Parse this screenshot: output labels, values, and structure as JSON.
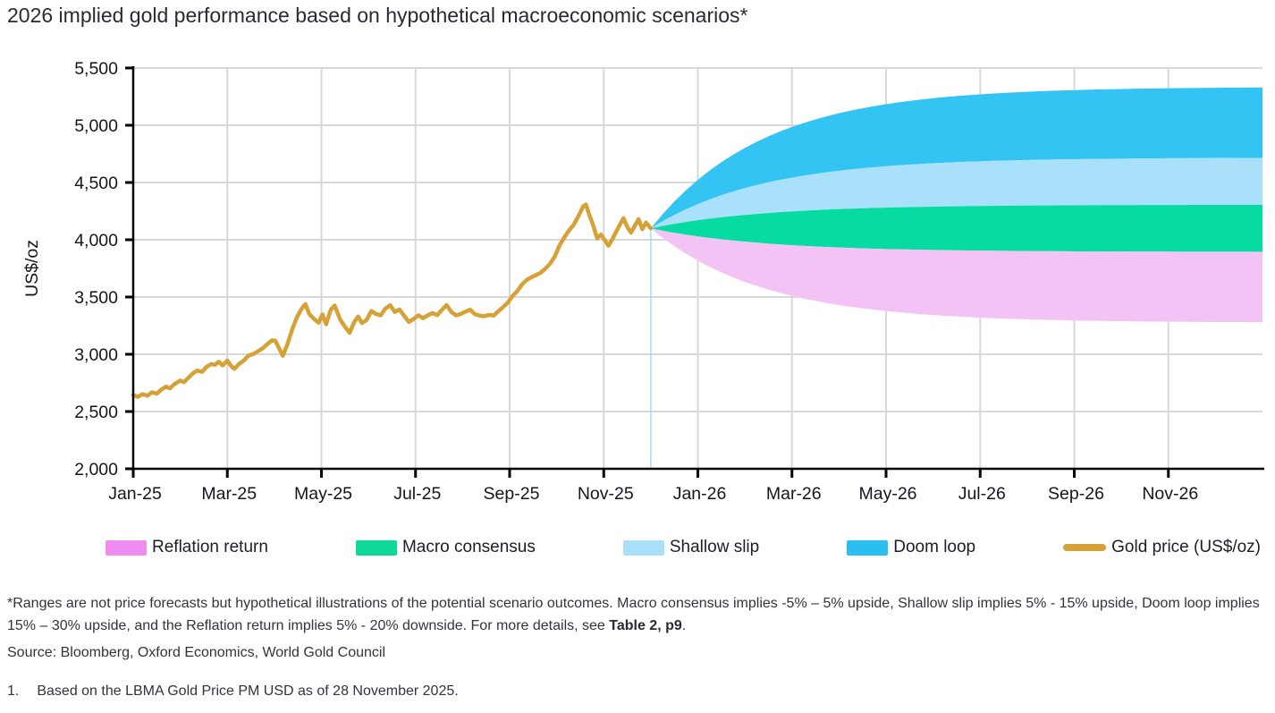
{
  "page": {
    "title": "2026 implied gold performance based on hypothetical macroeconomic scenarios*",
    "footnote": {
      "part1": "*Ranges are not price forecasts but hypothetical illustrations of the potential scenario outcomes. Macro consensus implies -5% – 5% upside, Shallow slip implies 5% - 15% upside, Doom loop implies 15% – 30% upside, and the Reflation return implies 5% - 20% downside. For more details, see ",
      "link": "Table 2, p9",
      "part2": "."
    },
    "source": "Source: Bloomberg, Oxford Economics, World Gold Council",
    "note1_number": "1.",
    "note1_text": "Based on the LBMA Gold Price PM USD as of 28 November 2025."
  },
  "chart_data": {
    "type": "line",
    "title": "2026 implied gold performance based on hypothetical macroeconomic scenarios",
    "ylabel": "US$/oz",
    "ylim": [
      2000,
      5500
    ],
    "grid": "both",
    "gridline_color": "#d8d8d8",
    "axis_color": "#000000",
    "yticks": [
      {
        "v": 2000,
        "label": "2,000"
      },
      {
        "v": 2500,
        "label": "2,500"
      },
      {
        "v": 3000,
        "label": "3,000"
      },
      {
        "v": 3500,
        "label": "3,500"
      },
      {
        "v": 4000,
        "label": "4,000"
      },
      {
        "v": 4500,
        "label": "4,500"
      },
      {
        "v": 5000,
        "label": "5,000"
      },
      {
        "v": 5500,
        "label": "5,500"
      }
    ],
    "xticks": [
      {
        "m": 0,
        "label": "Jan-25"
      },
      {
        "m": 2,
        "label": "Mar-25"
      },
      {
        "m": 4,
        "label": "May-25"
      },
      {
        "m": 6,
        "label": "Jul-25"
      },
      {
        "m": 8,
        "label": "Sep-25"
      },
      {
        "m": 10,
        "label": "Nov-25"
      },
      {
        "m": 12,
        "label": "Jan-26"
      },
      {
        "m": 14,
        "label": "Mar-26"
      },
      {
        "m": 16,
        "label": "May-26"
      },
      {
        "m": 18,
        "label": "Jul-26"
      },
      {
        "m": 20,
        "label": "Sep-26"
      },
      {
        "m": 22,
        "label": "Nov-26"
      }
    ],
    "x_range_months": [
      0,
      24
    ],
    "gold_line": {
      "name": "Gold price (US$/oz)",
      "color": "#d6a237",
      "last_value_note": "LBMA Gold Price PM USD as of 28 November 2025",
      "points": [
        [
          0,
          2645
        ],
        [
          0.1,
          2628
        ],
        [
          0.2,
          2652
        ],
        [
          0.3,
          2638
        ],
        [
          0.4,
          2668
        ],
        [
          0.5,
          2656
        ],
        [
          0.6,
          2692
        ],
        [
          0.7,
          2718
        ],
        [
          0.78,
          2702
        ],
        [
          0.88,
          2740
        ],
        [
          1.0,
          2770
        ],
        [
          1.08,
          2756
        ],
        [
          1.18,
          2798
        ],
        [
          1.28,
          2838
        ],
        [
          1.36,
          2858
        ],
        [
          1.46,
          2846
        ],
        [
          1.56,
          2890
        ],
        [
          1.66,
          2915
        ],
        [
          1.74,
          2908
        ],
        [
          1.82,
          2935
        ],
        [
          1.9,
          2902
        ],
        [
          2.0,
          2945
        ],
        [
          2.08,
          2898
        ],
        [
          2.15,
          2872
        ],
        [
          2.25,
          2916
        ],
        [
          2.35,
          2945
        ],
        [
          2.45,
          2988
        ],
        [
          2.55,
          3002
        ],
        [
          2.65,
          3025
        ],
        [
          2.75,
          3052
        ],
        [
          2.85,
          3088
        ],
        [
          2.95,
          3122
        ],
        [
          3.02,
          3118
        ],
        [
          3.1,
          3052
        ],
        [
          3.18,
          2986
        ],
        [
          3.28,
          3092
        ],
        [
          3.38,
          3218
        ],
        [
          3.48,
          3325
        ],
        [
          3.58,
          3398
        ],
        [
          3.66,
          3438
        ],
        [
          3.74,
          3352
        ],
        [
          3.84,
          3310
        ],
        [
          3.94,
          3275
        ],
        [
          4.02,
          3348
        ],
        [
          4.1,
          3262
        ],
        [
          4.2,
          3390
        ],
        [
          4.28,
          3426
        ],
        [
          4.4,
          3302
        ],
        [
          4.5,
          3240
        ],
        [
          4.6,
          3188
        ],
        [
          4.7,
          3282
        ],
        [
          4.78,
          3330
        ],
        [
          4.86,
          3272
        ],
        [
          4.96,
          3300
        ],
        [
          5.06,
          3378
        ],
        [
          5.16,
          3352
        ],
        [
          5.26,
          3340
        ],
        [
          5.36,
          3400
        ],
        [
          5.46,
          3428
        ],
        [
          5.56,
          3370
        ],
        [
          5.66,
          3390
        ],
        [
          5.76,
          3335
        ],
        [
          5.86,
          3282
        ],
        [
          5.96,
          3308
        ],
        [
          6.06,
          3340
        ],
        [
          6.16,
          3315
        ],
        [
          6.26,
          3340
        ],
        [
          6.36,
          3360
        ],
        [
          6.46,
          3342
        ],
        [
          6.56,
          3388
        ],
        [
          6.66,
          3430
        ],
        [
          6.76,
          3370
        ],
        [
          6.86,
          3340
        ],
        [
          6.96,
          3352
        ],
        [
          7.06,
          3372
        ],
        [
          7.16,
          3390
        ],
        [
          7.26,
          3350
        ],
        [
          7.36,
          3338
        ],
        [
          7.46,
          3332
        ],
        [
          7.56,
          3344
        ],
        [
          7.66,
          3338
        ],
        [
          7.76,
          3376
        ],
        [
          7.86,
          3412
        ],
        [
          7.96,
          3450
        ],
        [
          8.06,
          3508
        ],
        [
          8.16,
          3550
        ],
        [
          8.26,
          3608
        ],
        [
          8.36,
          3648
        ],
        [
          8.46,
          3672
        ],
        [
          8.56,
          3692
        ],
        [
          8.66,
          3712
        ],
        [
          8.76,
          3748
        ],
        [
          8.86,
          3792
        ],
        [
          8.96,
          3855
        ],
        [
          9.06,
          3950
        ],
        [
          9.16,
          4020
        ],
        [
          9.26,
          4080
        ],
        [
          9.36,
          4130
        ],
        [
          9.46,
          4205
        ],
        [
          9.56,
          4290
        ],
        [
          9.62,
          4308
        ],
        [
          9.7,
          4210
        ],
        [
          9.78,
          4120
        ],
        [
          9.86,
          4012
        ],
        [
          9.94,
          4045
        ],
        [
          10.02,
          3998
        ],
        [
          10.1,
          3948
        ],
        [
          10.18,
          4002
        ],
        [
          10.26,
          4068
        ],
        [
          10.34,
          4130
        ],
        [
          10.42,
          4188
        ],
        [
          10.5,
          4112
        ],
        [
          10.58,
          4062
        ],
        [
          10.66,
          4122
        ],
        [
          10.74,
          4180
        ],
        [
          10.82,
          4092
        ],
        [
          10.9,
          4150
        ],
        [
          11,
          4100
        ]
      ]
    },
    "anchor": {
      "month": 11,
      "price": 4100,
      "marker_line_color": "#93d9f3"
    },
    "scenarios": [
      {
        "name": "Doom loop",
        "band_color": "#33c4f4",
        "upper_pct": 30,
        "lower_pct": 15
      },
      {
        "name": "Shallow slip",
        "band_color": "#a9e0fa",
        "upper_pct": 15,
        "lower_pct": 5
      },
      {
        "name": "Macro consensus",
        "band_color": "#06dba2",
        "upper_pct": 5,
        "lower_pct": -5
      },
      {
        "name": "Reflation return",
        "band_color": "#f4c3f5",
        "upper_pct": -5,
        "lower_pct": -20
      }
    ],
    "legend": [
      {
        "label": "Reflation return",
        "type": "box",
        "color": "#ee8cef"
      },
      {
        "label": "Macro consensus",
        "type": "box",
        "color": "#10d79a"
      },
      {
        "label": "Shallow slip",
        "type": "box",
        "color": "#a9dff8"
      },
      {
        "label": "Doom loop",
        "type": "box",
        "color": "#2bbff1"
      },
      {
        "label": "Gold price (US$/oz)",
        "type": "line",
        "color": "#d6a237"
      }
    ],
    "legend_position": "bottom"
  }
}
